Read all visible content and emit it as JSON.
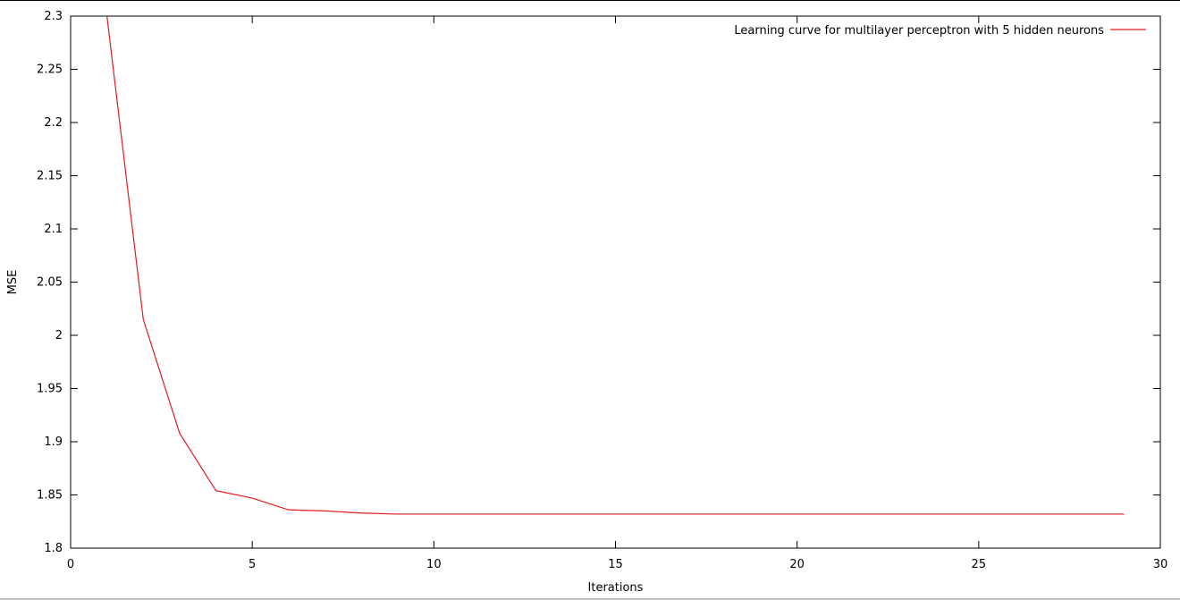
{
  "chart_data": {
    "type": "line",
    "xlabel": "Iterations",
    "ylabel": "MSE",
    "xlim": [
      0,
      30
    ],
    "ylim": [
      1.8,
      2.3
    ],
    "xticks": [
      0,
      5,
      10,
      15,
      20,
      25,
      30
    ],
    "xtick_labels": [
      "0",
      "5",
      "10",
      "15",
      "20",
      "25",
      "30"
    ],
    "yticks": [
      1.8,
      1.85,
      1.9,
      1.95,
      2.0,
      2.05,
      2.1,
      2.15,
      2.2,
      2.25,
      2.3
    ],
    "ytick_labels": [
      "1.8",
      "1.85",
      "1.9",
      "1.95",
      "2",
      "2.05",
      "2.1",
      "2.15",
      "2.2",
      "2.25",
      "2.3"
    ],
    "grid": false,
    "legend_position": "top-right",
    "series": [
      {
        "name": "Learning curve for multilayer perceptron with 5 hidden neurons",
        "color": "#e41a1c",
        "x": [
          1,
          2,
          3,
          4,
          5,
          6,
          7,
          8,
          9,
          10,
          11,
          12,
          13,
          14,
          15,
          16,
          17,
          18,
          19,
          20,
          21,
          22,
          23,
          24,
          25,
          26,
          27,
          28,
          29
        ],
        "y": [
          2.3,
          2.015,
          1.908,
          1.854,
          1.847,
          1.836,
          1.835,
          1.833,
          1.832,
          1.832,
          1.832,
          1.832,
          1.832,
          1.832,
          1.832,
          1.832,
          1.832,
          1.832,
          1.832,
          1.832,
          1.832,
          1.832,
          1.832,
          1.832,
          1.832,
          1.832,
          1.832,
          1.832,
          1.832
        ]
      }
    ]
  }
}
